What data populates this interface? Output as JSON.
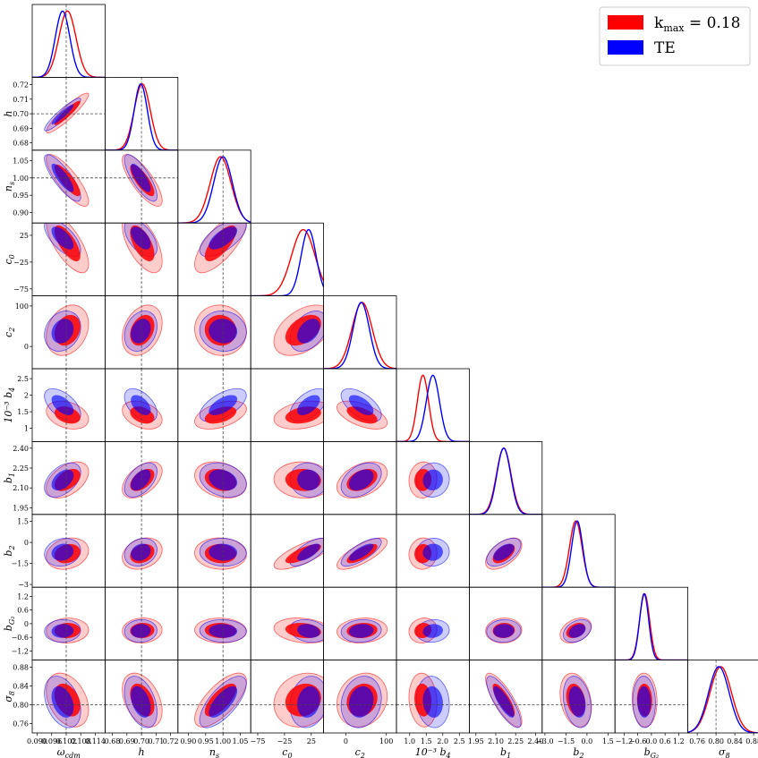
{
  "chart_data": {
    "type": "corner",
    "legend": {
      "placement": "top-right",
      "entries": [
        {
          "label": "k",
          "sub": "max",
          "suffix": " = 0.18",
          "color": "#ff0000"
        },
        {
          "label": "TE",
          "color": "#0000ff"
        }
      ]
    },
    "reference_color_red": "#ff0000",
    "reference_color_blue": "#0000ff",
    "parameters": [
      {
        "name": "omega_cdm",
        "label": "ω",
        "sub": "cdm",
        "range": [
          0.088,
          0.118
        ],
        "ticks": [
          0.09,
          0.096,
          0.102,
          0.108,
          0.114
        ],
        "ticklabels": [
          "0.090",
          "0.096",
          "0.102",
          "0.108",
          "0.114"
        ],
        "truth": 0.102,
        "red": {
          "mean": 0.1025,
          "sd": 0.0035
        },
        "blue": {
          "mean": 0.1005,
          "sd": 0.003
        }
      },
      {
        "name": "h",
        "label": "h",
        "range": [
          0.675,
          0.725
        ],
        "ticks": [
          0.68,
          0.69,
          0.7,
          0.71,
          0.72
        ],
        "ticklabels": [
          "0.68",
          "0.69",
          "0.70",
          "0.71",
          "0.72"
        ],
        "truth": 0.7,
        "red": {
          "mean": 0.7005,
          "sd": 0.0055
        },
        "blue": {
          "mean": 0.6995,
          "sd": 0.0045
        }
      },
      {
        "name": "n_s",
        "label": "n",
        "sub": "s",
        "range": [
          0.87,
          1.08
        ],
        "ticks": [
          0.9,
          0.95,
          1.0,
          1.05
        ],
        "ticklabels": [
          "0.90",
          "0.95",
          "1.00",
          "1.05"
        ],
        "truth": 1.0,
        "red": {
          "mean": 0.993,
          "sd": 0.03
        },
        "blue": {
          "mean": 1.0,
          "sd": 0.027
        }
      },
      {
        "name": "c_0",
        "label": "c",
        "sub": "0",
        "range": [
          -88,
          48
        ],
        "ticks": [
          -75,
          -25,
          25
        ],
        "ticklabels": [
          "−75",
          "−25",
          "25"
        ],
        "truth": null,
        "red": {
          "mean": 10,
          "sd": 22
        },
        "blue": {
          "mean": 20,
          "sd": 14
        }
      },
      {
        "name": "c_2",
        "label": "c",
        "sub": "2",
        "range": [
          -55,
          125
        ],
        "ticks": [
          0,
          100
        ],
        "ticklabels": [
          "0",
          "100"
        ],
        "truth": null,
        "red": {
          "mean": 40,
          "sd": 25
        },
        "blue": {
          "mean": 38,
          "sd": 20
        }
      },
      {
        "name": "b_4",
        "label": "10⁻³ b",
        "sub": "4",
        "range": [
          0.6,
          2.8
        ],
        "ticks": [
          1.0,
          1.5,
          2.0,
          2.5
        ],
        "ticklabels": [
          "1",
          "1.5",
          "2",
          "2.5"
        ],
        "ticklabels_x": [
          "1.0",
          "1.5",
          "2.0",
          "2.5"
        ],
        "truth": null,
        "red": {
          "mean": 1.4,
          "sd": 0.17
        },
        "blue": {
          "mean": 1.7,
          "sd": 0.2
        }
      },
      {
        "name": "b_1",
        "label": "b",
        "sub": "1",
        "range": [
          1.9,
          2.45
        ],
        "ticks": [
          1.95,
          2.1,
          2.25,
          2.4
        ],
        "ticklabels": [
          "1.95",
          "2.10",
          "2.25",
          "2.40"
        ],
        "truth": null,
        "red": {
          "mean": 2.16,
          "sd": 0.055
        },
        "blue": {
          "mean": 2.16,
          "sd": 0.052
        }
      },
      {
        "name": "b_2",
        "label": "b",
        "sub": "2",
        "range": [
          -3.2,
          2.0
        ],
        "ticks": [
          -3.0,
          -1.5,
          0.0,
          1.5
        ],
        "ticklabels": [
          "−3.0",
          "−1.5",
          "0.0",
          "1.5"
        ],
        "ticklabels_y": [
          "−3",
          "−1.5",
          "0",
          "1.5"
        ],
        "truth": null,
        "red": {
          "mean": -0.8,
          "sd": 0.45
        },
        "blue": {
          "mean": -0.7,
          "sd": 0.4
        }
      },
      {
        "name": "b_G2",
        "label": "b",
        "sub": "G₂",
        "range": [
          -1.6,
          1.6
        ],
        "ticks": [
          -1.2,
          -0.6,
          0.0,
          0.6,
          1.2
        ],
        "ticklabels": [
          "−1.2",
          "−0.6",
          "0.0",
          "0.6",
          "1.2"
        ],
        "ticklabels_y": [
          "−1.2",
          "−0.6",
          "0",
          "0.6",
          "1.2"
        ],
        "truth": null,
        "red": {
          "mean": -0.3,
          "sd": 0.22
        },
        "blue": {
          "mean": -0.32,
          "sd": 0.2
        }
      },
      {
        "name": "sigma_8",
        "label": "σ",
        "sub": "8",
        "range": [
          0.74,
          0.895
        ],
        "ticks": [
          0.76,
          0.8,
          0.84,
          0.88
        ],
        "ticklabels": [
          "0.76",
          "0.80",
          "0.84",
          "0.88"
        ],
        "truth": 0.8,
        "red": {
          "mean": 0.81,
          "sd": 0.023
        },
        "blue": {
          "mean": 0.806,
          "sd": 0.022
        }
      }
    ],
    "correlations": {
      "red": [
        [
          1,
          0.92,
          -0.82,
          -0.7,
          0.25,
          -0.3,
          0.45,
          0.2,
          0.05,
          -0.35
        ],
        [
          0.92,
          1,
          -0.78,
          -0.6,
          0.3,
          -0.35,
          0.5,
          0.25,
          0.05,
          -0.4
        ],
        [
          -0.82,
          -0.78,
          1,
          0.72,
          -0.05,
          0.45,
          -0.25,
          -0.05,
          -0.05,
          0.7
        ],
        [
          -0.7,
          -0.6,
          0.72,
          1,
          0.45,
          0.3,
          -0.05,
          0.75,
          -0.2,
          0.15
        ],
        [
          0.25,
          0.3,
          -0.05,
          0.45,
          1,
          -0.55,
          0.4,
          0.75,
          0.1,
          0.15
        ],
        [
          -0.3,
          -0.35,
          0.45,
          0.3,
          -0.55,
          1,
          0.05,
          0.05,
          0.1,
          -0.1
        ],
        [
          0.45,
          0.5,
          -0.25,
          -0.05,
          0.4,
          0.05,
          1,
          0.55,
          0.05,
          -0.8
        ],
        [
          0.2,
          0.25,
          -0.05,
          0.75,
          0.75,
          0.05,
          0.55,
          1,
          0.35,
          -0.25
        ],
        [
          0.05,
          0.05,
          -0.05,
          -0.2,
          0.1,
          0.1,
          0.05,
          0.35,
          1,
          -0.05
        ],
        [
          -0.35,
          -0.4,
          0.7,
          0.15,
          0.15,
          -0.1,
          -0.8,
          -0.25,
          -0.05,
          1
        ]
      ],
      "blue": [
        [
          1,
          0.92,
          -0.82,
          -0.65,
          0.2,
          -0.55,
          0.45,
          0.15,
          0.05,
          -0.35
        ],
        [
          0.92,
          1,
          -0.78,
          -0.55,
          0.25,
          -0.5,
          0.5,
          0.2,
          0.05,
          -0.4
        ],
        [
          -0.82,
          -0.78,
          1,
          0.65,
          -0.05,
          0.6,
          -0.25,
          -0.05,
          -0.05,
          0.7
        ],
        [
          -0.65,
          -0.55,
          0.65,
          1,
          0.4,
          0.55,
          -0.05,
          0.7,
          -0.2,
          0.15
        ],
        [
          0.2,
          0.25,
          -0.05,
          0.4,
          1,
          -0.6,
          0.4,
          0.75,
          0.1,
          0.15
        ],
        [
          -0.55,
          -0.5,
          0.6,
          0.55,
          -0.6,
          1,
          0.05,
          0.05,
          0.1,
          -0.1
        ],
        [
          0.45,
          0.5,
          -0.25,
          -0.05,
          0.4,
          0.05,
          1,
          0.55,
          0.05,
          -0.8
        ],
        [
          0.15,
          0.2,
          -0.05,
          0.7,
          0.75,
          0.05,
          0.55,
          1,
          0.35,
          -0.25
        ],
        [
          0.05,
          0.05,
          -0.05,
          -0.2,
          0.1,
          0.1,
          0.05,
          0.35,
          1,
          -0.05
        ],
        [
          -0.35,
          -0.4,
          0.7,
          0.15,
          0.15,
          -0.1,
          -0.8,
          -0.25,
          -0.05,
          1
        ]
      ]
    },
    "grid": false
  }
}
